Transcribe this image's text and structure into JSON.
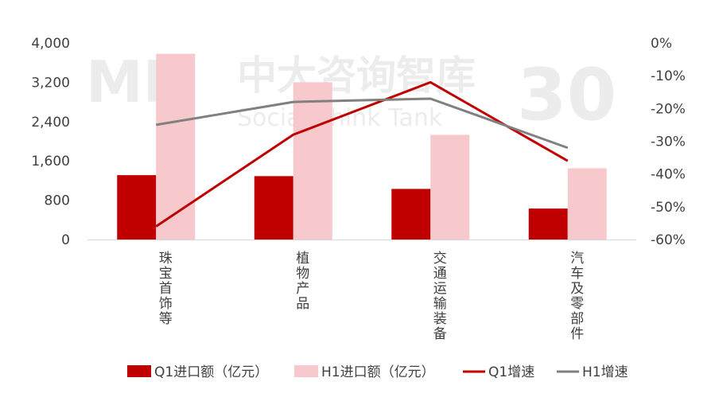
{
  "chart_data": {
    "type": "bar",
    "categories": [
      "珠宝首饰等",
      "植物产品",
      "交通运输装备",
      "汽车及零部件"
    ],
    "series": [
      {
        "name": "Q1进口额（亿元）",
        "kind": "bar",
        "axis": "left",
        "color": "#c00000",
        "values": [
          1310,
          1290,
          1030,
          630
        ]
      },
      {
        "name": "H1进口额（亿元）",
        "kind": "bar",
        "axis": "left",
        "color": "#f8c9cc",
        "values": [
          3780,
          3200,
          2130,
          1450
        ]
      },
      {
        "name": "Q1增速",
        "kind": "line",
        "axis": "right",
        "color": "#c00000",
        "values": [
          -56,
          -28,
          -12,
          -36
        ]
      },
      {
        "name": "H1增速",
        "kind": "line",
        "axis": "right",
        "color": "#808080",
        "values": [
          -25,
          -18,
          -17,
          -32
        ]
      }
    ],
    "y_left": {
      "ylim": [
        0,
        4000
      ],
      "ticks": [
        "0",
        "800",
        "1,600",
        "2,400",
        "3,200",
        "4,000"
      ]
    },
    "y_right": {
      "ylim": [
        -60,
        0
      ],
      "ticks": [
        "-60%",
        "-50%",
        "-40%",
        "-30%",
        "-20%",
        "-10%",
        "0%"
      ]
    },
    "legend_position": "bottom",
    "grid": false
  },
  "watermark": {
    "logo": "MP",
    "name": "中大咨询智库",
    "subtitle": "Social Think Tank",
    "badge": "30"
  }
}
